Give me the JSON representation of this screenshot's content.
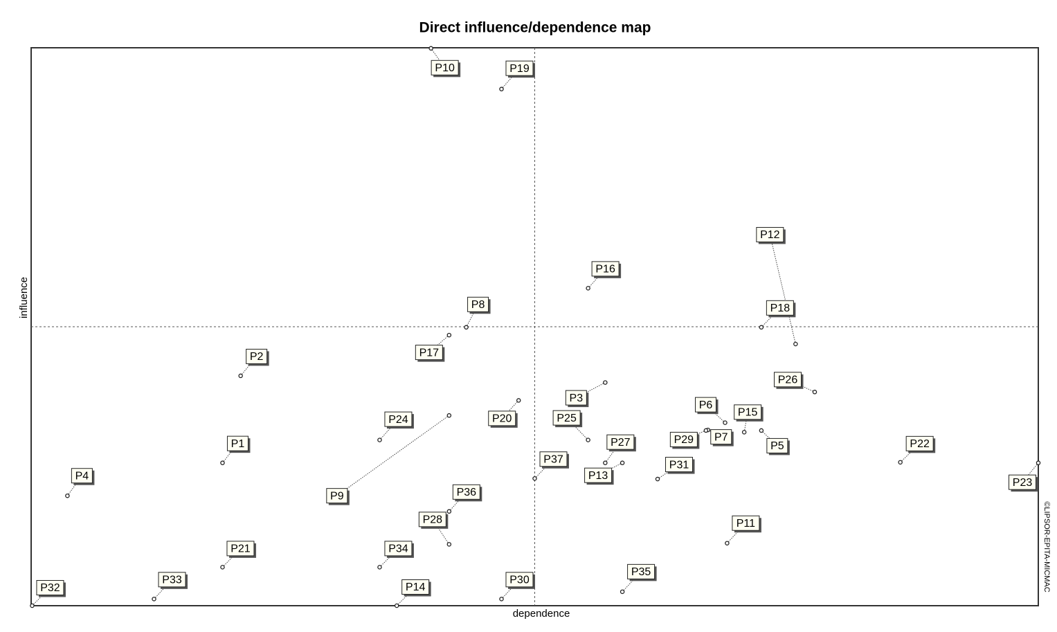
{
  "chart_data": {
    "type": "scatter",
    "title": "Direct influence/dependence map",
    "x_label": "dependence",
    "y_label": "influence",
    "credit": "©LIPSOR-EPITA-MICMAC",
    "xlim": [
      0,
      100
    ],
    "ylim": [
      0,
      100
    ],
    "points": [
      {
        "label": "P10",
        "x": 39.7,
        "y": 99.9
      },
      {
        "label": "P19",
        "x": 46.7,
        "y": 92.6
      },
      {
        "label": "P12",
        "x": 75.9,
        "y": 46.9
      },
      {
        "label": "P16",
        "x": 55.3,
        "y": 56.9
      },
      {
        "label": "P8",
        "x": 43.2,
        "y": 49.9
      },
      {
        "label": "P18",
        "x": 72.5,
        "y": 49.9
      },
      {
        "label": "P17",
        "x": 41.5,
        "y": 48.5
      },
      {
        "label": "P2",
        "x": 20.8,
        "y": 41.2
      },
      {
        "label": "P26",
        "x": 77.8,
        "y": 38.3
      },
      {
        "label": "P3",
        "x": 57.0,
        "y": 40.0
      },
      {
        "label": "P20",
        "x": 48.4,
        "y": 36.8
      },
      {
        "label": "P24",
        "x": 34.6,
        "y": 29.7
      },
      {
        "label": "P9",
        "x": 41.5,
        "y": 34.1
      },
      {
        "label": "P25",
        "x": 55.3,
        "y": 29.7
      },
      {
        "label": "P6",
        "x": 68.9,
        "y": 32.8
      },
      {
        "label": "P15",
        "x": 70.8,
        "y": 31.1
      },
      {
        "label": "P7",
        "x": 67.2,
        "y": 31.5
      },
      {
        "label": "P29",
        "x": 67.0,
        "y": 31.4
      },
      {
        "label": "P5",
        "x": 72.5,
        "y": 31.4
      },
      {
        "label": "P27",
        "x": 57.0,
        "y": 25.6
      },
      {
        "label": "P13",
        "x": 58.7,
        "y": 25.6
      },
      {
        "label": "P1",
        "x": 19.0,
        "y": 25.6
      },
      {
        "label": "P22",
        "x": 86.3,
        "y": 25.7
      },
      {
        "label": "P37",
        "x": 50.0,
        "y": 22.8
      },
      {
        "label": "P31",
        "x": 62.2,
        "y": 22.7
      },
      {
        "label": "P4",
        "x": 3.6,
        "y": 19.7
      },
      {
        "label": "P23",
        "x": 100,
        "y": 25.6
      },
      {
        "label": "P36",
        "x": 41.5,
        "y": 16.9
      },
      {
        "label": "P28",
        "x": 41.5,
        "y": 11.0
      },
      {
        "label": "P11",
        "x": 69.1,
        "y": 11.2
      },
      {
        "label": "P21",
        "x": 19.0,
        "y": 6.9
      },
      {
        "label": "P34",
        "x": 34.6,
        "y": 6.9
      },
      {
        "label": "P35",
        "x": 58.7,
        "y": 2.5
      },
      {
        "label": "P33",
        "x": 12.2,
        "y": 1.2
      },
      {
        "label": "P30",
        "x": 46.7,
        "y": 1.2
      },
      {
        "label": "P32",
        "x": 0.1,
        "y": 0
      },
      {
        "label": "P14",
        "x": 36.3,
        "y": 0
      }
    ]
  }
}
